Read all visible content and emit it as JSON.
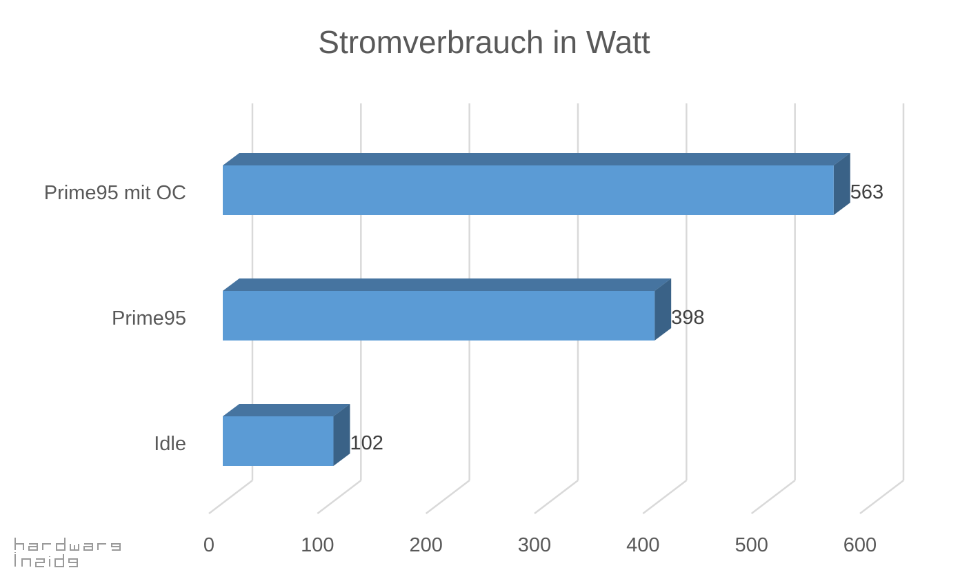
{
  "chart_data": {
    "type": "bar",
    "orientation": "horizontal",
    "style": "3d",
    "title": "Stromverbrauch in Watt",
    "categories": [
      "Prime95 mit OC",
      "Prime95",
      "Idle"
    ],
    "values": [
      563,
      398,
      102
    ],
    "xlim": [
      0,
      600
    ],
    "ticks": [
      0,
      100,
      200,
      300,
      400,
      500,
      600
    ],
    "grid": true,
    "legend": "none",
    "colors": {
      "bar_front": "#5B9BD5",
      "bar_top": "#4674A0",
      "bar_side": "#3A6287",
      "grid": "#D9D9D9"
    }
  },
  "watermark": {
    "text": "hardware inside"
  }
}
